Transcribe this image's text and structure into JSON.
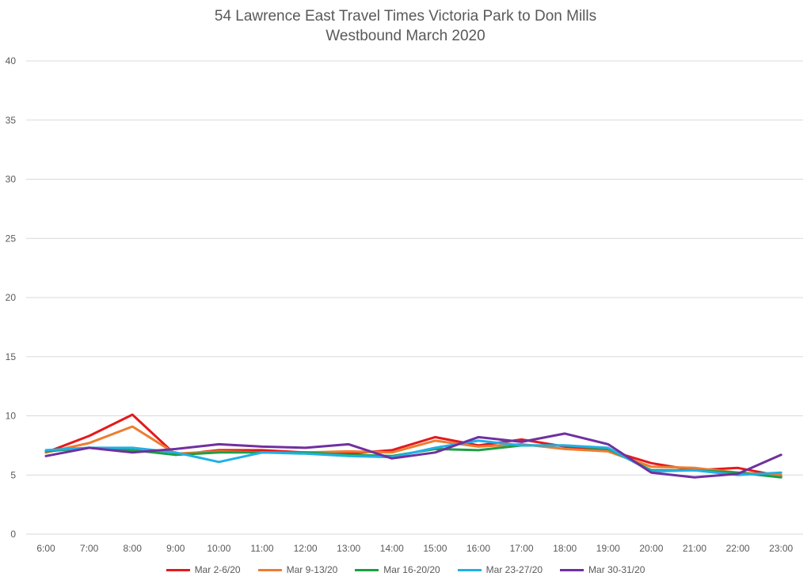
{
  "chart_data": {
    "type": "line",
    "title": "54 Lawrence East Travel Times Victoria Park to Don Mills",
    "subtitle": "Westbound  March 2020",
    "xlabel": "",
    "ylabel": "",
    "ylim": [
      0,
      40
    ],
    "yticks": [
      "0",
      "5",
      "10",
      "15",
      "20",
      "25",
      "30",
      "35",
      "40"
    ],
    "grid": true,
    "legend_position": "bottom",
    "categories": [
      "6:00",
      "7:00",
      "8:00",
      "9:00",
      "10:00",
      "11:00",
      "12:00",
      "13:00",
      "14:00",
      "15:00",
      "16:00",
      "17:00",
      "18:00",
      "19:00",
      "20:00",
      "21:00",
      "22:00",
      "23:00"
    ],
    "series": [
      {
        "name": "Mar 2-6/20",
        "color": "#e31a1c",
        "values": [
          6.9,
          8.3,
          10.1,
          6.7,
          7.1,
          7.1,
          6.9,
          6.8,
          7.1,
          8.2,
          7.5,
          8.0,
          7.4,
          7.1,
          6.0,
          5.4,
          5.6,
          4.9
        ]
      },
      {
        "name": "Mar 9-13/20",
        "color": "#ed7d31",
        "values": [
          6.9,
          7.7,
          9.1,
          6.8,
          7.0,
          6.9,
          6.9,
          7.0,
          6.9,
          7.9,
          7.4,
          7.6,
          7.2,
          7.0,
          5.7,
          5.6,
          5.2,
          5.0
        ]
      },
      {
        "name": "Mar 16-20/20",
        "color": "#1e9e46",
        "values": [
          7.0,
          7.3,
          7.1,
          6.7,
          6.9,
          6.9,
          6.9,
          6.7,
          6.6,
          7.2,
          7.1,
          7.5,
          7.5,
          7.2,
          5.4,
          5.4,
          5.2,
          4.8
        ]
      },
      {
        "name": "Mar 23-27/20",
        "color": "#21b0e6",
        "values": [
          7.1,
          7.3,
          7.3,
          6.9,
          6.1,
          6.9,
          6.8,
          6.6,
          6.5,
          7.3,
          7.9,
          7.5,
          7.5,
          7.3,
          5.3,
          5.4,
          5.0,
          5.2
        ]
      },
      {
        "name": "Mar 30-31/20",
        "color": "#7030a0",
        "values": [
          6.6,
          7.3,
          6.9,
          7.2,
          7.6,
          7.4,
          7.3,
          7.6,
          6.4,
          6.9,
          8.2,
          7.8,
          8.5,
          7.6,
          5.2,
          4.8,
          5.1,
          6.7
        ]
      }
    ]
  }
}
